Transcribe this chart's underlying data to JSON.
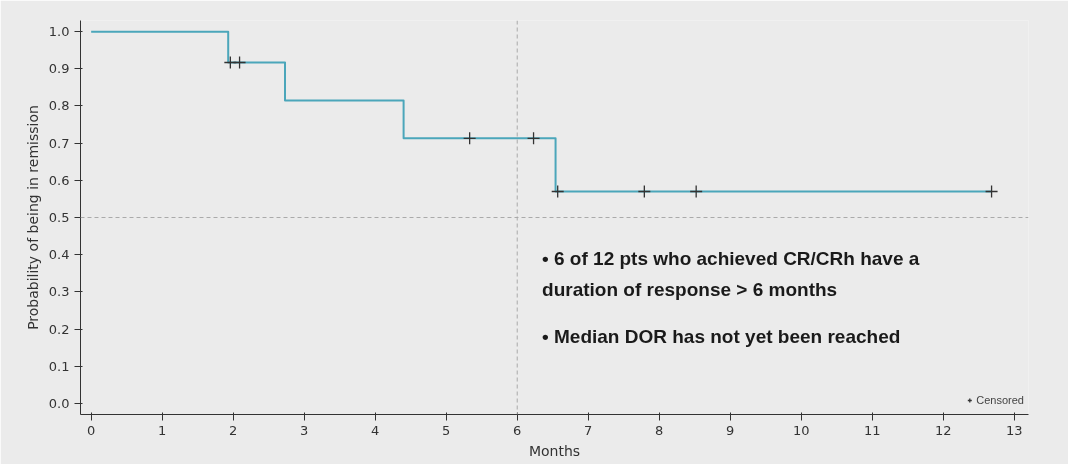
{
  "chart_data": {
    "type": "step",
    "xlabel": "Months",
    "ylabel": "Probability of being in remission",
    "series": [
      {
        "color": "#4ba6ba",
        "x": [
          0,
          1.93,
          2.73,
          4.4,
          6.54,
          12.68
        ],
        "values": [
          1.0,
          0.917,
          0.815,
          0.713,
          0.57,
          0.57
        ]
      },
      {
        "type": "scatter",
        "name": "Censored",
        "marker": "cross",
        "color": "#333333",
        "x": [
          1.96,
          2.09,
          5.33,
          6.23,
          6.57,
          7.79,
          8.52,
          12.68
        ],
        "values": [
          0.917,
          0.917,
          0.713,
          0.713,
          0.57,
          0.57,
          0.57,
          0.57
        ]
      }
    ],
    "xlim": [
      -0.15,
      13.2
    ],
    "ylim": [
      -0.03,
      1.03
    ],
    "xticks": [
      0,
      1,
      2,
      3,
      4,
      5,
      6,
      7,
      8,
      9,
      10,
      11,
      12,
      13
    ],
    "yticks": [
      {
        "value": 0,
        "label": "0.0"
      },
      {
        "value": 0.1,
        "label": "0.1"
      },
      {
        "value": 0.2,
        "label": "0.2"
      },
      {
        "value": 0.3,
        "label": "0.3"
      },
      {
        "value": 0.4,
        "label": "0.4"
      },
      {
        "value": 0.5,
        "label": "0.5"
      },
      {
        "value": 0.6,
        "label": "0.6"
      },
      {
        "value": 0.7,
        "label": "0.7"
      },
      {
        "value": 0.8,
        "label": "0.8"
      },
      {
        "value": 0.9,
        "label": "0.9"
      },
      {
        "value": 1.0,
        "label": "1.0"
      }
    ],
    "ref_lines": [
      {
        "axis": "y",
        "value": 0.5,
        "color": "#aaaaaa",
        "line_style": "dashed"
      },
      {
        "axis": "x",
        "value": 6,
        "color": "#aaaaaa",
        "line_style": "dashed"
      }
    ],
    "annotations": [
      "• 6 of 12 pts who achieved CR/CRh have a\nduration of response > 6 months",
      "• Median DOR has not yet been reached"
    ],
    "grid": false,
    "legend": "bottom right"
  }
}
